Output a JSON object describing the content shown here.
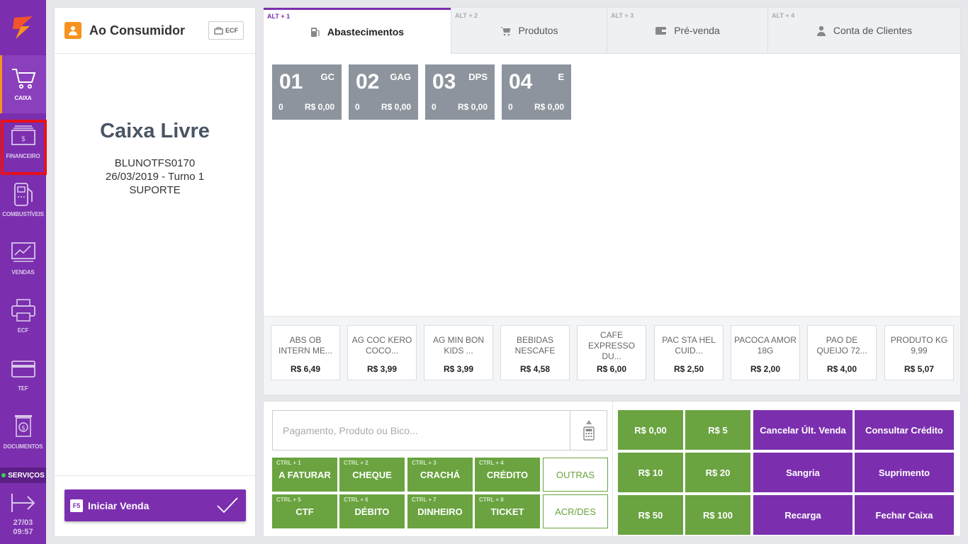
{
  "sidebar": {
    "items": [
      {
        "label": "CAIXA",
        "icon": "cart-icon"
      },
      {
        "label": "FINANCEIRO",
        "icon": "cash-icon"
      },
      {
        "label": "COMBUSTÍVEIS",
        "icon": "fuel-pump-icon"
      },
      {
        "label": "VENDAS",
        "icon": "chart-icon"
      },
      {
        "label": "ECF",
        "icon": "printer-icon"
      },
      {
        "label": "TEF",
        "icon": "card-icon"
      },
      {
        "label": "DOCUMENTOS",
        "icon": "document-icon"
      }
    ],
    "services_label": "SERVIÇOS",
    "date": "27/03",
    "time": "09:57"
  },
  "left_panel": {
    "consumer": "Ao Consumidor",
    "ecf_label": "ECF",
    "status": "Caixa Livre",
    "terminal": "BLUNOTFS0170",
    "shift": "26/03/2019 - Turno 1",
    "operator": "SUPORTE",
    "start_key": "F5",
    "start_label": "Iniciar Venda"
  },
  "tabs": [
    {
      "shortcut": "ALT + 1",
      "label": "Abastecimentos",
      "icon": "fuel-icon"
    },
    {
      "shortcut": "ALT + 2",
      "label": "Produtos",
      "icon": "cart-icon"
    },
    {
      "shortcut": "ALT + 3",
      "label": "Pré-venda",
      "icon": "wallet-icon"
    },
    {
      "shortcut": "ALT + 4",
      "label": "Conta de Clientes",
      "icon": "user-icon"
    }
  ],
  "pumps": [
    {
      "number": "01",
      "fuel": "GC",
      "qty": "0",
      "amount": "R$ 0,00"
    },
    {
      "number": "02",
      "fuel": "GAG",
      "qty": "0",
      "amount": "R$ 0,00"
    },
    {
      "number": "03",
      "fuel": "DPS",
      "qty": "0",
      "amount": "R$ 0,00"
    },
    {
      "number": "04",
      "fuel": "E",
      "qty": "0",
      "amount": "R$ 0,00"
    }
  ],
  "products": [
    {
      "name": "ABS OB INTERN ME...",
      "price": "R$ 6,49"
    },
    {
      "name": "AG COC KERO COCO...",
      "price": "R$ 3,99"
    },
    {
      "name": "AG MIN BON KIDS ...",
      "price": "R$ 3,99"
    },
    {
      "name": "BEBIDAS NESCAFE",
      "price": "R$ 4,58"
    },
    {
      "name": "CAFE EXPRESSO DU...",
      "price": "R$ 6,00"
    },
    {
      "name": "PAC STA HEL CUID...",
      "price": "R$ 2,50"
    },
    {
      "name": "PACOCA AMOR 18G",
      "price": "R$ 2,00"
    },
    {
      "name": "PAO DE QUEIJO 72...",
      "price": "R$ 4,00"
    },
    {
      "name": "PRODUTO KG 9,99",
      "price": "R$ 5,07"
    }
  ],
  "search": {
    "placeholder": "Pagamento, Produto ou Bico...",
    "value": ""
  },
  "payments": [
    {
      "shortcut": "CTRL + 1",
      "label": "A FATURAR"
    },
    {
      "shortcut": "CTRL + 2",
      "label": "CHEQUE"
    },
    {
      "shortcut": "CTRL + 3",
      "label": "CRACHÁ"
    },
    {
      "shortcut": "CTRL + 4",
      "label": "CRÉDITO"
    },
    {
      "shortcut": "",
      "label": "OUTRAS"
    },
    {
      "shortcut": "CTRL + 5",
      "label": "CTF"
    },
    {
      "shortcut": "CTRL + 6",
      "label": "DÉBITO"
    },
    {
      "shortcut": "CTRL + 7",
      "label": "DINHEIRO"
    },
    {
      "shortcut": "CTRL + 8",
      "label": "TICKET"
    },
    {
      "shortcut": "",
      "label": "ACR/DES"
    }
  ],
  "quick_values": [
    "R$ 0,00",
    "R$ 5",
    "R$ 10",
    "R$ 20",
    "R$ 50",
    "R$ 100"
  ],
  "actions": [
    "Cancelar Últ. Venda",
    "Consultar Crédito",
    "Sangria",
    "Suprimento",
    "Recarga",
    "Fechar Caixa"
  ],
  "colors": {
    "brand": "#7b2fae",
    "accent": "#f7931e",
    "payment_green": "#6aa340",
    "pump_gray": "#8e949e",
    "highlight": "#e8101a"
  }
}
